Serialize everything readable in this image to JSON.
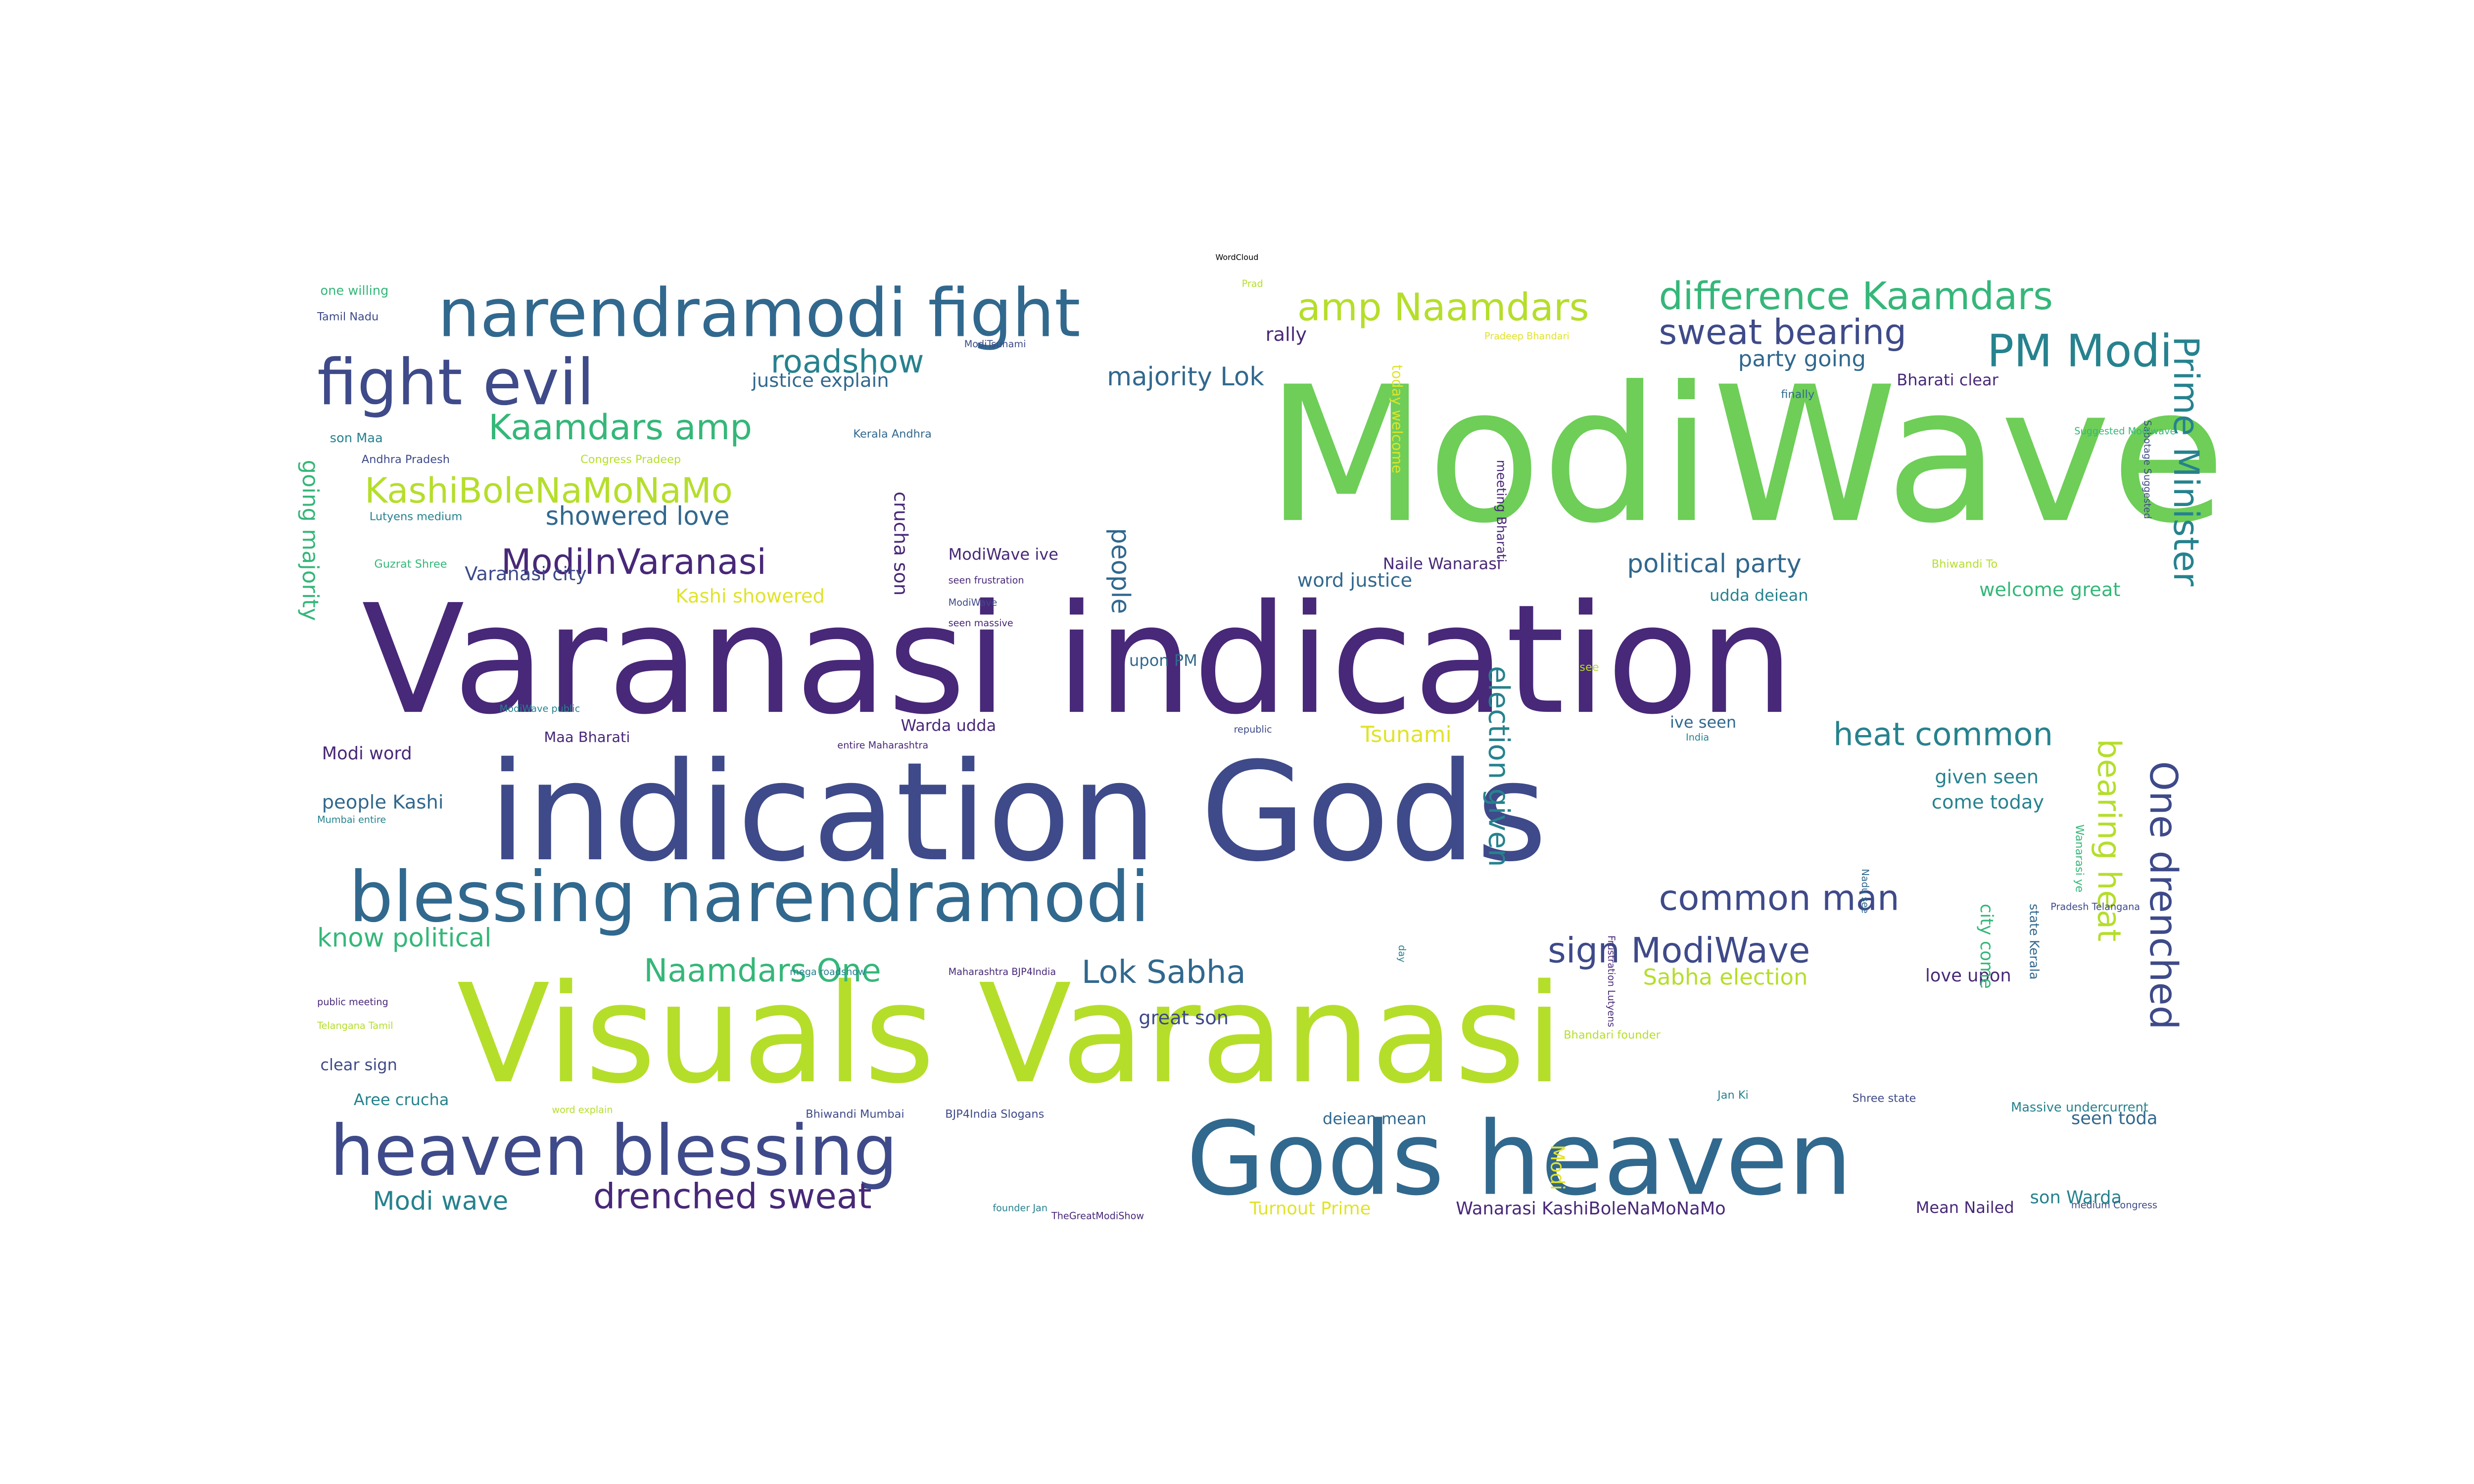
{
  "title": "WordCloud",
  "colors": {
    "dark_purple": "#482878",
    "indigo": "#3e4a89",
    "blue": "#31688e",
    "teal": "#26828e",
    "green": "#35b779",
    "light_green": "#6ece58",
    "lime": "#b5de2b",
    "yellow": "#e0e32a"
  },
  "words": [
    {
      "text": "ModiWave"
    },
    {
      "text": "Varanasi indication"
    },
    {
      "text": "indication Gods"
    },
    {
      "text": "Visuals Varanasi"
    },
    {
      "text": "Gods heaven"
    },
    {
      "text": "heaven blessing"
    },
    {
      "text": "blessing narendramodi"
    },
    {
      "text": "narendramodi fight"
    },
    {
      "text": "fight evil"
    },
    {
      "text": "difference Kaamdars"
    },
    {
      "text": "amp Naamdars"
    },
    {
      "text": "PM Modi"
    },
    {
      "text": "sweat bearing"
    },
    {
      "text": "Kaamdars amp"
    },
    {
      "text": "KashiBoleNaMoNaMo"
    },
    {
      "text": "ModiInVaranasi"
    },
    {
      "text": "roadshow"
    },
    {
      "text": "majority Lok"
    },
    {
      "text": "showered love"
    },
    {
      "text": "political party"
    },
    {
      "text": "heat common"
    },
    {
      "text": "common man"
    },
    {
      "text": "sign ModiWave"
    },
    {
      "text": "Lok Sabha"
    },
    {
      "text": "Naamdars One"
    },
    {
      "text": "know political"
    },
    {
      "text": "drenched sweat"
    },
    {
      "text": "Modi wave"
    },
    {
      "text": "Sabha election"
    },
    {
      "text": "Prime Minister"
    },
    {
      "text": "One drenched"
    },
    {
      "text": "bearing heat"
    },
    {
      "text": "election given"
    },
    {
      "text": "people"
    },
    {
      "text": "going majority"
    },
    {
      "text": "crucha son"
    },
    {
      "text": "Tsunami"
    },
    {
      "text": "party going"
    },
    {
      "text": "Bharati clear"
    },
    {
      "text": "rally"
    },
    {
      "text": "justice explain"
    },
    {
      "text": "word justice"
    },
    {
      "text": "welcome great"
    },
    {
      "text": "Varanasi city"
    },
    {
      "text": "Kashi showered"
    },
    {
      "text": "people Kashi"
    },
    {
      "text": "Modi word"
    },
    {
      "text": "given seen"
    },
    {
      "text": "come today"
    },
    {
      "text": "love upon"
    },
    {
      "text": "great son"
    },
    {
      "text": "seen toda"
    },
    {
      "text": "son Warda"
    },
    {
      "text": "Turnout Prime"
    },
    {
      "text": "Wanarasi KashiBoleNaMoNaMo"
    },
    {
      "text": "upon PM"
    },
    {
      "text": "ive seen"
    },
    {
      "text": "Naile Wanarasi"
    },
    {
      "text": "ModiWave ive"
    },
    {
      "text": "Warda udda"
    },
    {
      "text": "udda deiean"
    },
    {
      "text": "deiean mean"
    },
    {
      "text": "Maa Bharati"
    },
    {
      "text": "Mean Nailed"
    },
    {
      "text": "clear sign"
    },
    {
      "text": "Aree crucha"
    },
    {
      "text": "today welcome"
    },
    {
      "text": "meeting Bharati"
    },
    {
      "text": "Modi"
    },
    {
      "text": "state Kerala"
    },
    {
      "text": "city come"
    },
    {
      "text": "Massive undercurrent"
    },
    {
      "text": "one willing"
    },
    {
      "text": "Tamil Nadu"
    },
    {
      "text": "son Maa"
    },
    {
      "text": "Andhra Pradesh"
    },
    {
      "text": "Congress Pradeep"
    },
    {
      "text": "Kerala Andhra"
    },
    {
      "text": "Lutyens medium"
    },
    {
      "text": "Guzrat Shree"
    },
    {
      "text": "public meeting"
    },
    {
      "text": "Telangana Tamil"
    },
    {
      "text": "ModiWave public"
    },
    {
      "text": "Mumbai entire"
    },
    {
      "text": "ModiTsunami"
    },
    {
      "text": "Pradeep Bhandari"
    },
    {
      "text": "Prad"
    },
    {
      "text": "Bhiwandi Mumbai"
    },
    {
      "text": "BJP4India Slogans"
    },
    {
      "text": "Bhiwandi To"
    },
    {
      "text": "TheGreatModiShow"
    },
    {
      "text": "founder Jan"
    },
    {
      "text": "medium Congress"
    },
    {
      "text": "republic"
    },
    {
      "text": "India"
    },
    {
      "text": "entire Maharashtra"
    },
    {
      "text": "Jan Ki"
    },
    {
      "text": "Shree state"
    },
    {
      "text": "Bhandari founder"
    },
    {
      "text": "Nadu see"
    },
    {
      "text": "Sabotage Suggested"
    },
    {
      "text": "Suggested Modiwave"
    },
    {
      "text": "finally"
    },
    {
      "text": "see"
    },
    {
      "text": "day"
    },
    {
      "text": "Frustration Lutyens"
    },
    {
      "text": "mega roadshow"
    },
    {
      "text": "Maharashtra BJP4India"
    },
    {
      "text": "word explain"
    },
    {
      "text": "seen frustration"
    },
    {
      "text": "ModiWave"
    },
    {
      "text": "seen massive"
    },
    {
      "text": "Wanarasi ye"
    },
    {
      "text": "Pradesh Telangana"
    },
    {
      "text": "explain Never"
    }
  ]
}
